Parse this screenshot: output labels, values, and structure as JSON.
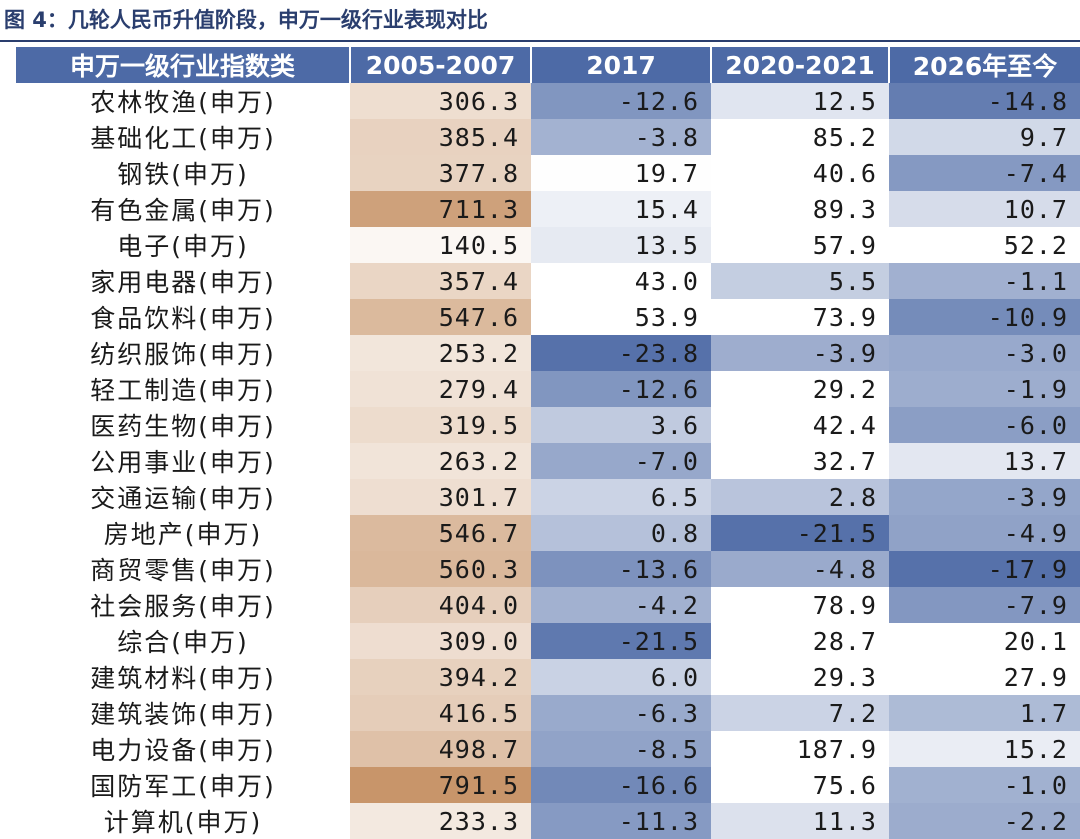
{
  "caption": "图 4：几轮人民币升值阶段，申万一级行业表现对比",
  "colors": {
    "header_bg": "#4d6aa6",
    "header_text": "#ffffff",
    "caption_text": "#2a3e6e",
    "first_period_scale": "#c8956a",
    "negative_scale": "#4d6aa6",
    "positive_scale": "#ffffff"
  },
  "chart_data": {
    "type": "table",
    "title": "图 4：几轮人民币升值阶段，申万一级行业表现对比",
    "columns": [
      "申万一级行业指数类",
      "2005-2007",
      "2017",
      "2020-2021",
      "2026年至今"
    ],
    "rows": [
      {
        "name": "农林牧渔(申万)",
        "values": [
          306.3,
          -12.6,
          12.5,
          -14.8
        ]
      },
      {
        "name": "基础化工(申万)",
        "values": [
          385.4,
          -3.8,
          85.2,
          9.7
        ]
      },
      {
        "name": "钢铁(申万)",
        "values": [
          377.8,
          19.7,
          40.6,
          -7.4
        ]
      },
      {
        "name": "有色金属(申万)",
        "values": [
          711.3,
          15.4,
          89.3,
          10.7
        ]
      },
      {
        "name": "电子(申万)",
        "values": [
          140.5,
          13.5,
          57.9,
          52.2
        ]
      },
      {
        "name": "家用电器(申万)",
        "values": [
          357.4,
          43.0,
          5.5,
          -1.1
        ]
      },
      {
        "name": "食品饮料(申万)",
        "values": [
          547.6,
          53.9,
          73.9,
          -10.9
        ]
      },
      {
        "name": "纺织服饰(申万)",
        "values": [
          253.2,
          -23.8,
          -3.9,
          -3.0
        ]
      },
      {
        "name": "轻工制造(申万)",
        "values": [
          279.4,
          -12.6,
          29.2,
          -1.9
        ]
      },
      {
        "name": "医药生物(申万)",
        "values": [
          319.5,
          3.6,
          42.4,
          -6.0
        ]
      },
      {
        "name": "公用事业(申万)",
        "values": [
          263.2,
          -7.0,
          32.7,
          13.7
        ]
      },
      {
        "name": "交通运输(申万)",
        "values": [
          301.7,
          6.5,
          2.8,
          -3.9
        ]
      },
      {
        "name": "房地产(申万)",
        "values": [
          546.7,
          0.8,
          -21.5,
          -4.9
        ]
      },
      {
        "name": "商贸零售(申万)",
        "values": [
          560.3,
          -13.6,
          -4.8,
          -17.9
        ]
      },
      {
        "name": "社会服务(申万)",
        "values": [
          404.0,
          -4.2,
          78.9,
          -7.9
        ]
      },
      {
        "name": "综合(申万)",
        "values": [
          309.0,
          -21.5,
          28.7,
          20.1
        ]
      },
      {
        "name": "建筑材料(申万)",
        "values": [
          394.2,
          6.0,
          29.3,
          27.9
        ]
      },
      {
        "name": "建筑装饰(申万)",
        "values": [
          416.5,
          -6.3,
          7.2,
          1.7
        ]
      },
      {
        "name": "电力设备(申万)",
        "values": [
          498.7,
          -8.5,
          187.9,
          15.2
        ]
      },
      {
        "name": "国防军工(申万)",
        "values": [
          791.5,
          -16.6,
          75.6,
          -1.0
        ]
      },
      {
        "name": "计算机(申万)",
        "values": [
          233.3,
          -11.3,
          11.3,
          -2.2
        ]
      }
    ]
  }
}
